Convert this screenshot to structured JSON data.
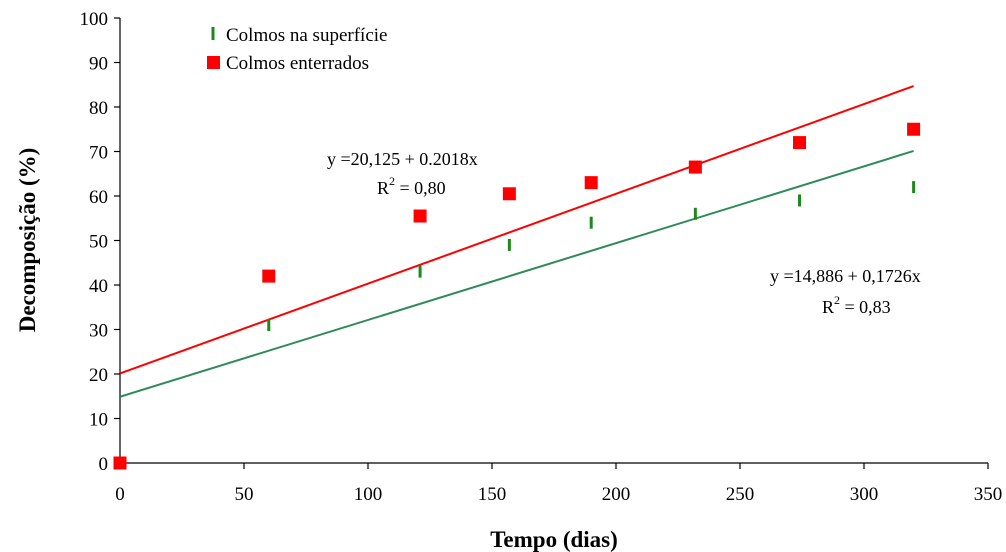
{
  "chart_data": {
    "type": "scatter",
    "xlabel": "Tempo (dias)",
    "ylabel": "Decomposição (%)",
    "xlim": [
      0,
      350
    ],
    "ylim": [
      0,
      100
    ],
    "xticks": [
      "0",
      "50",
      "100",
      "150",
      "200",
      "250",
      "300",
      "350"
    ],
    "yticks": [
      "0",
      "10",
      "20",
      "30",
      "40",
      "50",
      "60",
      "70",
      "80",
      "90",
      "100"
    ],
    "grid": false,
    "legend_position": "top-left",
    "series": [
      {
        "name": "Colmos na superfície",
        "marker": "vertical-dash",
        "color": "#1a8a1a",
        "x": [
          60,
          121,
          157,
          190,
          232,
          274,
          320
        ],
        "y": [
          31,
          43,
          49,
          54,
          56,
          59,
          62
        ]
      },
      {
        "name": "Colmos enterrados",
        "marker": "square",
        "color": "#ff0000",
        "x": [
          0,
          60,
          121,
          157,
          190,
          232,
          274,
          320
        ],
        "y": [
          0,
          42,
          55.5,
          60.5,
          63,
          66.5,
          72,
          75
        ]
      }
    ],
    "trendlines": [
      {
        "series": "Colmos enterrados",
        "color": "#ff0000",
        "intercept": 20.125,
        "slope": 0.2018,
        "x_range": [
          0,
          320
        ],
        "equation": "y =20,125 +  0.2018x",
        "r2_prefix": "R",
        "r2_exp": "2",
        "r2_value": " = 0,80"
      },
      {
        "series": "Colmos na superfície",
        "color": "#2e8b57",
        "intercept": 14.886,
        "slope": 0.1726,
        "x_range": [
          0,
          320
        ],
        "equation": "y =14,886 +  0,1726x",
        "r2_prefix": "R",
        "r2_exp": "2",
        "r2_value": " = 0,83"
      }
    ]
  }
}
